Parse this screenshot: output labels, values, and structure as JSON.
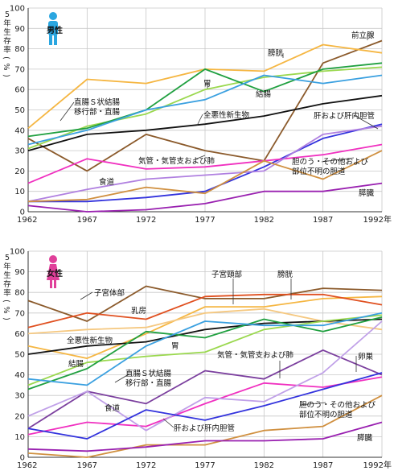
{
  "chart_data": [
    {
      "type": "line",
      "title": "男性",
      "ylabel": "5年生存率(%)",
      "x": [
        1962,
        1967,
        1972,
        1977,
        1982,
        1987,
        1992
      ],
      "x_tick_labels": [
        "1962",
        "1967",
        "1972",
        "1977",
        "1982",
        "1987",
        "1992年"
      ],
      "ylim": [
        0,
        100
      ],
      "yticks": [
        0,
        10,
        20,
        30,
        40,
        50,
        60,
        70,
        80,
        90,
        100
      ],
      "grid": true,
      "series": [
        {
          "name": "前立腺",
          "color": "#8b5a2b",
          "values": [
            36,
            20,
            38,
            30,
            25,
            73,
            84
          ]
        },
        {
          "name": "膀胱",
          "color": "#f5b642",
          "values": [
            41,
            65,
            63,
            70,
            69,
            82,
            78
          ]
        },
        {
          "name": "胃",
          "color": "#9ad84e",
          "values": [
            31,
            42,
            48,
            60,
            66,
            69,
            71
          ]
        },
        {
          "name": "結腸",
          "color": "#20a040",
          "values": [
            37,
            41,
            50,
            70,
            59,
            70,
            73
          ]
        },
        {
          "name": "直腸Ｓ状結腸移行部・直腸",
          "color": "#3aa0e0",
          "values": [
            33,
            40,
            50,
            55,
            67,
            63,
            67
          ]
        },
        {
          "name": "全悪性新生物",
          "color": "#111111",
          "values": [
            30,
            38,
            40,
            43,
            47,
            53,
            57
          ]
        },
        {
          "name": "肝および肝内胆管",
          "color": "#3333dd",
          "values": [
            5,
            5,
            7,
            10,
            22,
            36,
            43
          ]
        },
        {
          "name": "気管・気管支および肺",
          "color": "#f030c0",
          "values": [
            14,
            26,
            21,
            22,
            25,
            28,
            33
          ]
        },
        {
          "name": "食道",
          "color": "#b080e0",
          "values": [
            5,
            11,
            16,
            18,
            20,
            38,
            42
          ]
        },
        {
          "name": "胆のう・その他および部位不明の胆道",
          "color": "#d09040",
          "values": [
            5,
            6,
            12,
            9,
            25,
            16,
            30
          ]
        },
        {
          "name": "膵臓",
          "color": "#9920b0",
          "values": [
            3,
            0,
            1,
            4,
            10,
            10,
            14
          ]
        }
      ]
    },
    {
      "type": "line",
      "title": "女性",
      "ylabel": "5年生存率(%)",
      "x": [
        1962,
        1967,
        1972,
        1977,
        1982,
        1987,
        1992
      ],
      "x_tick_labels": [
        "1962",
        "1967",
        "1972",
        "1977",
        "1982",
        "1987",
        "1992年"
      ],
      "ylim": [
        0,
        100
      ],
      "yticks": [
        0,
        10,
        20,
        30,
        40,
        50,
        60,
        70,
        80,
        90,
        100
      ],
      "grid": true,
      "series": [
        {
          "name": "子宮体部",
          "color": "#8b5a2b",
          "values": [
            76,
            66,
            83,
            77,
            77,
            82,
            81
          ]
        },
        {
          "name": "膀胱",
          "color": "#f5b642",
          "values": [
            54,
            48,
            60,
            73,
            73,
            77,
            78
          ]
        },
        {
          "name": "子宮頸部",
          "color": "#e05020",
          "values": [
            63,
            70,
            67,
            78,
            79,
            79,
            74
          ]
        },
        {
          "name": "乳房",
          "color": "#f5c880",
          "values": [
            60,
            62,
            63,
            70,
            72,
            66,
            62
          ]
        },
        {
          "name": "全悪性新生物",
          "color": "#111111",
          "values": [
            50,
            54,
            56,
            62,
            65,
            66,
            67
          ]
        },
        {
          "name": "胃",
          "color": "#9ad84e",
          "values": [
            35,
            46,
            49,
            51,
            62,
            66,
            69
          ]
        },
        {
          "name": "結腸",
          "color": "#20a040",
          "values": [
            33,
            43,
            61,
            58,
            67,
            61,
            68
          ]
        },
        {
          "name": "直腸Ｓ状結腸移行部・直腸",
          "color": "#3aa0e0",
          "values": [
            38,
            35,
            54,
            66,
            64,
            64,
            70
          ]
        },
        {
          "name": "卵巣",
          "color": "#7b3f9e",
          "values": [
            14,
            32,
            26,
            42,
            38,
            52,
            40
          ]
        },
        {
          "name": "気管・気管支および肺",
          "color": "#f030c0",
          "values": [
            11,
            17,
            15,
            26,
            36,
            34,
            39
          ]
        },
        {
          "name": "食道",
          "color": "#c0a0e8",
          "values": [
            20,
            32,
            13,
            29,
            27,
            41,
            66
          ]
        },
        {
          "name": "肝および肝内胆管",
          "color": "#3333dd",
          "values": [
            14,
            9,
            23,
            18,
            25,
            33,
            41
          ]
        },
        {
          "name": "胆のう・その他および部位不明の胆道",
          "color": "#d09040",
          "values": [
            2,
            0,
            6,
            6,
            13,
            15,
            30
          ]
        },
        {
          "name": "膵臓",
          "color": "#9920b0",
          "values": [
            4,
            3,
            5,
            8,
            8,
            9,
            17
          ]
        }
      ]
    }
  ],
  "panels": [
    {
      "title": "男性",
      "icon": "male-icon",
      "icon_color": "#2aa6e0",
      "annotations": [
        {
          "key": "prostate",
          "lines": [
            "前立腺"
          ]
        },
        {
          "key": "bladder",
          "lines": [
            "膀胱"
          ]
        },
        {
          "key": "stomach",
          "lines": [
            "胃"
          ]
        },
        {
          "key": "colon",
          "lines": [
            "結腸"
          ]
        },
        {
          "key": "rectum",
          "lines": [
            "直腸Ｓ状結腸",
            "移行部・直腸"
          ]
        },
        {
          "key": "all",
          "lines": [
            "全悪性新生物"
          ]
        },
        {
          "key": "liver",
          "lines": [
            "肝および肝内胆管"
          ]
        },
        {
          "key": "lung",
          "lines": [
            "気管・気管支および肺"
          ]
        },
        {
          "key": "esophagus",
          "lines": [
            "食道"
          ]
        },
        {
          "key": "gallbladder",
          "lines": [
            "胆のう・その他および",
            "部位不明の胆道"
          ]
        },
        {
          "key": "pancreas",
          "lines": [
            "膵臓"
          ]
        }
      ]
    },
    {
      "title": "女性",
      "icon": "female-icon",
      "icon_color": "#e0409a",
      "annotations": [
        {
          "key": "uterus-body",
          "lines": [
            "子宮体部"
          ]
        },
        {
          "key": "cervix",
          "lines": [
            "子宮頸部"
          ]
        },
        {
          "key": "bladder",
          "lines": [
            "膀胱"
          ]
        },
        {
          "key": "breast",
          "lines": [
            "乳房"
          ]
        },
        {
          "key": "all",
          "lines": [
            "全悪性新生物"
          ]
        },
        {
          "key": "stomach",
          "lines": [
            "胃"
          ]
        },
        {
          "key": "colon",
          "lines": [
            "結腸"
          ]
        },
        {
          "key": "rectum",
          "lines": [
            "直腸Ｓ状結腸",
            "移行部・直腸"
          ]
        },
        {
          "key": "lung",
          "lines": [
            "気管・気管支および肺"
          ]
        },
        {
          "key": "ovary",
          "lines": [
            "卵巣"
          ]
        },
        {
          "key": "esophagus",
          "lines": [
            "食道"
          ]
        },
        {
          "key": "gallbladder",
          "lines": [
            "胆のう・その他および",
            "部位不明の胆道"
          ]
        },
        {
          "key": "liver",
          "lines": [
            "肝および肝内胆管"
          ]
        },
        {
          "key": "pancreas",
          "lines": [
            "膵臓"
          ]
        }
      ]
    }
  ]
}
